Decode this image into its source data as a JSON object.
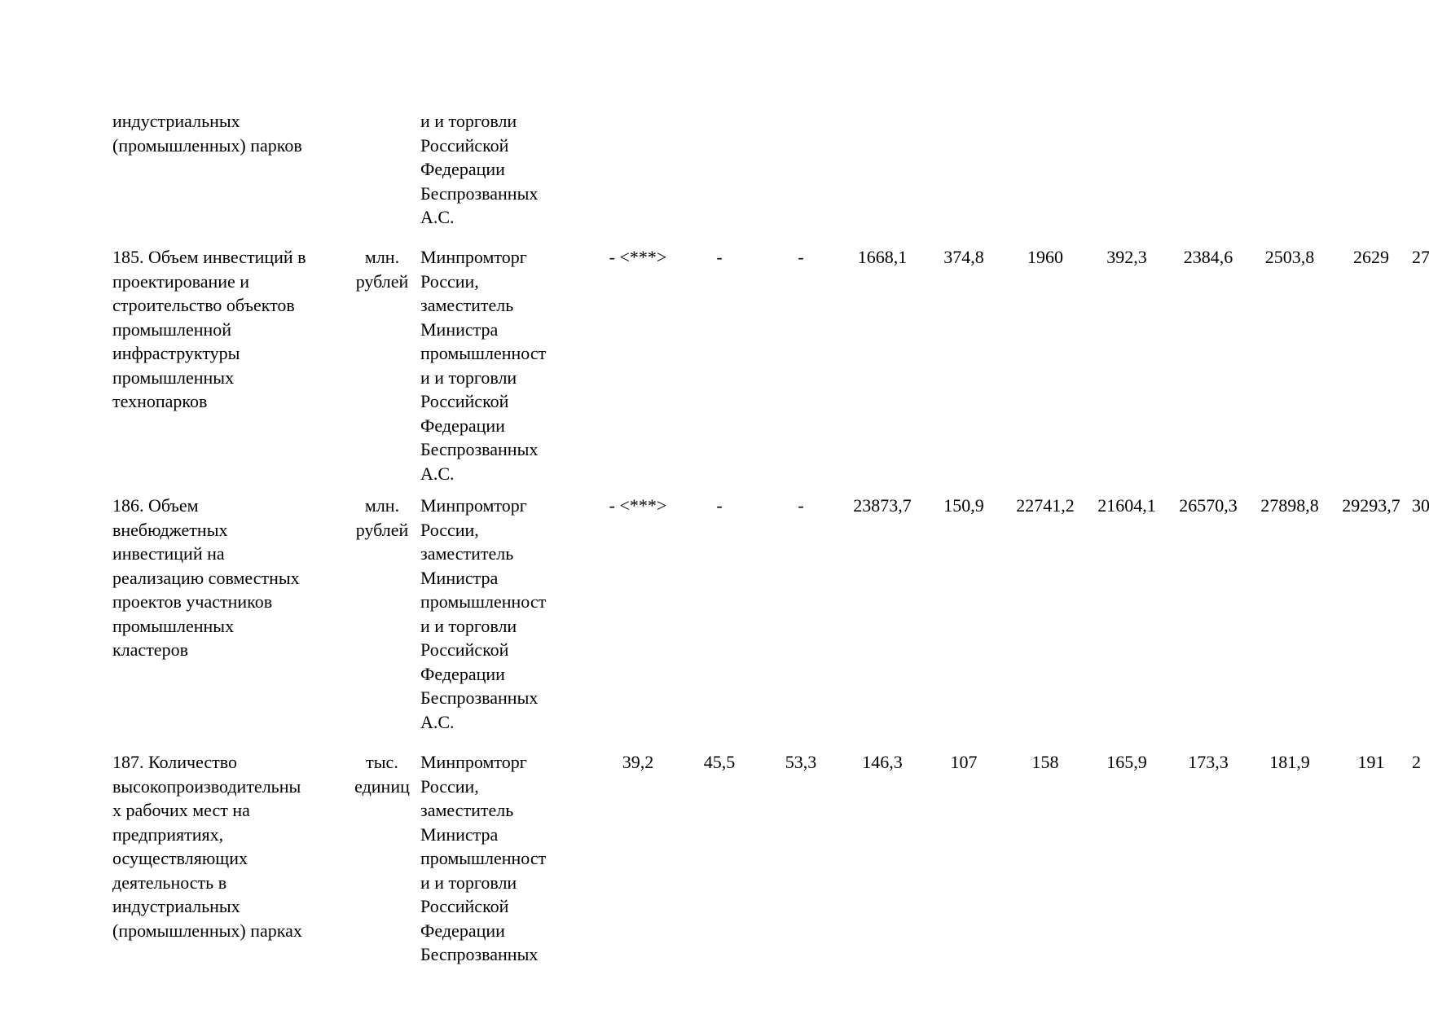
{
  "page": {
    "background_color": "#ffffff",
    "text_color": "#000000",
    "kind": "document fragment, borderless table of program indicators"
  },
  "table": {
    "column_roles": [
      "indicator name",
      "unit of measurement",
      "responsible executor",
      "value columns (11 visible, last clipped by page edge)"
    ],
    "rows": [
      {
        "id": "row-184-continuation",
        "indicator_lines": [
          "индустриальных",
          "(промышленных) парков"
        ],
        "unit_lines": [],
        "responsible_lines": [
          "и и торговли",
          "Российской",
          "Федерации",
          "Беспрозванных",
          "А.С."
        ],
        "values": [
          "",
          "",
          "",
          "",
          "",
          "",
          "",
          "",
          "",
          "",
          ""
        ]
      },
      {
        "id": "row-185",
        "indicator_lines": [
          "185. Объем инвестиций в",
          "проектирование и",
          "строительство объектов",
          "промышленной",
          "инфраструктуры",
          "промышленных",
          "технопарков"
        ],
        "unit_lines": [
          "млн.",
          "рублей"
        ],
        "responsible_lines": [
          "Минпромторг",
          "России,",
          "заместитель",
          "Министра",
          "промышленност",
          "и и торговли",
          "Российской",
          "Федерации",
          "Беспрозванных",
          "А.С."
        ],
        "values": [
          "- <***>",
          "-",
          "-",
          "1668,1",
          "374,8",
          "1960",
          "392,3",
          "2384,6",
          "2503,8",
          "2629",
          "27"
        ]
      },
      {
        "id": "row-186",
        "indicator_lines": [
          "186. Объем",
          "внебюджетных",
          "инвестиций на",
          "реализацию совместных",
          "проектов участников",
          "промышленных",
          "кластеров"
        ],
        "unit_lines": [
          "млн.",
          "рублей"
        ],
        "responsible_lines": [
          "Минпромторг",
          "России,",
          "заместитель",
          "Министра",
          "промышленност",
          "и и торговли",
          "Российской",
          "Федерации",
          "Беспрозванных",
          "А.С."
        ],
        "values": [
          "- <***>",
          "-",
          "-",
          "23873,7",
          "150,9",
          "22741,2",
          "21604,1",
          "26570,3",
          "27898,8",
          "29293,7",
          "30"
        ]
      },
      {
        "id": "row-187",
        "indicator_lines": [
          "187. Количество",
          "высокопроизводительны",
          "х рабочих мест на",
          "предприятиях,",
          "осуществляющих",
          "деятельность в",
          "индустриальных",
          "(промышленных) парках"
        ],
        "unit_lines": [
          "тыс.",
          "единиц"
        ],
        "responsible_lines": [
          "Минпромторг",
          "России,",
          "заместитель",
          "Министра",
          "промышленност",
          "и и торговли",
          "Российской",
          "Федерации",
          "Беспрозванных"
        ],
        "values": [
          "39,2",
          "45,5",
          "53,3",
          "146,3",
          "107",
          "158",
          "165,9",
          "173,3",
          "181,9",
          "191",
          "2"
        ]
      }
    ]
  }
}
